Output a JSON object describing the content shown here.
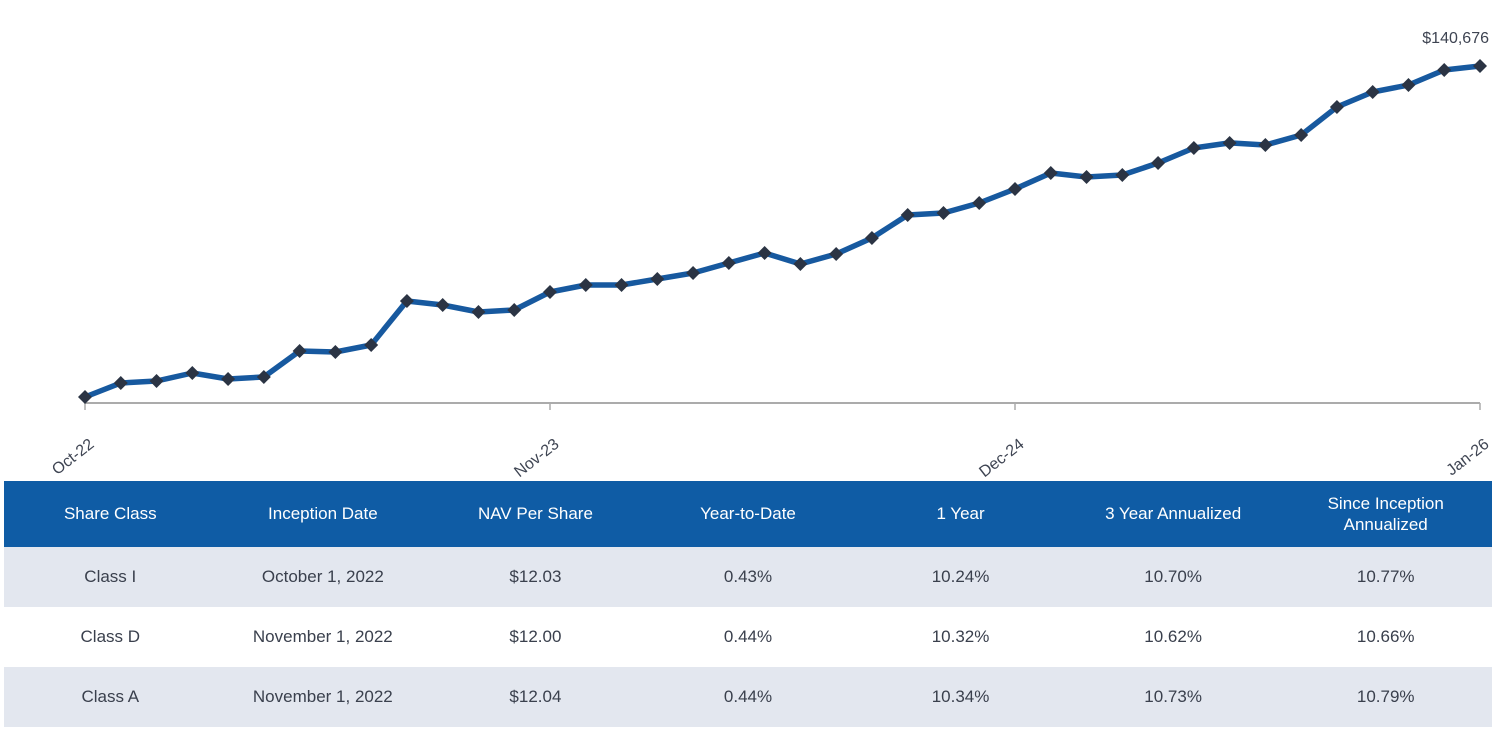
{
  "colors": {
    "line": "#17599F",
    "marker": "#2B3444",
    "axis": "#ABABAB",
    "axis_label": "#3E4452",
    "header_bg": "#0F5CA5",
    "header_text": "#FFFFFF",
    "row_alt_bg": "#E3E7EF",
    "row_text": "#3A404D"
  },
  "chart_data": {
    "type": "line",
    "title": "",
    "xlabel": "",
    "ylabel": "",
    "grid": "off",
    "legend": "none",
    "end_point_label": "$140,676",
    "ylim": [
      100000,
      140676
    ],
    "x_tick_labels": [
      "Oct-22",
      "Nov-23",
      "Dec-24",
      "Jan-26"
    ],
    "x_tick_indices": [
      0,
      13,
      26,
      39
    ],
    "x": [
      "Oct-22",
      "Nov-22",
      "Dec-22",
      "Jan-23",
      "Feb-23",
      "Mar-23",
      "Apr-23",
      "May-23",
      "Jun-23",
      "Jul-23",
      "Aug-23",
      "Sep-23",
      "Oct-23",
      "Nov-23",
      "Dec-23",
      "Jan-24",
      "Feb-24",
      "Mar-24",
      "Apr-24",
      "May-24",
      "Jun-24",
      "Jul-24",
      "Aug-24",
      "Sep-24",
      "Oct-24",
      "Nov-24",
      "Dec-24",
      "Jan-25",
      "Feb-25",
      "Mar-25",
      "Apr-25",
      "May-25",
      "Jun-25",
      "Jul-25",
      "Aug-25",
      "Sep-25",
      "Oct-25",
      "Nov-25",
      "Dec-25",
      "Jan-26"
    ],
    "values": [
      100000,
      101720,
      101970,
      102950,
      102210,
      102460,
      105650,
      105530,
      106390,
      111800,
      111310,
      110450,
      110690,
      112900,
      113760,
      113760,
      114500,
      115240,
      116470,
      117700,
      116350,
      117570,
      119540,
      122370,
      122610,
      123840,
      125560,
      127530,
      127040,
      127280,
      128760,
      130600,
      131220,
      130970,
      132200,
      135640,
      137480,
      138340,
      140190,
      140676
    ]
  },
  "table": {
    "columns": [
      "Share Class",
      "Inception Date",
      "NAV Per Share",
      "Year-to-Date",
      "1 Year",
      "3 Year Annualized",
      "Since Inception Annualized"
    ],
    "rows": [
      {
        "cells": [
          "Class I",
          "October 1, 2022",
          "$12.03",
          "0.43%",
          "10.24%",
          "10.70%",
          "10.77%"
        ]
      },
      {
        "cells": [
          "Class D",
          "November 1, 2022",
          "$12.00",
          "0.44%",
          "10.32%",
          "10.62%",
          "10.66%"
        ]
      },
      {
        "cells": [
          "Class A",
          "November 1, 2022",
          "$12.04",
          "0.44%",
          "10.34%",
          "10.73%",
          "10.79%"
        ]
      }
    ]
  }
}
